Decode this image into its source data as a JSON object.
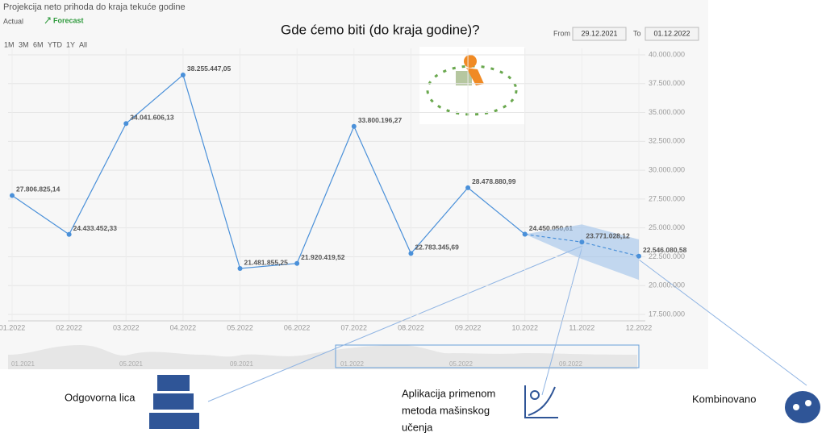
{
  "page": {
    "heading": "Gde ćemo biti (do kraja godine)?",
    "legend_actual": "Actual",
    "legend_forecast": "Forecast",
    "ranges": [
      "1M",
      "3M",
      "6M",
      "YTD",
      "1Y",
      "All"
    ],
    "from_label": "From",
    "from_value": "29.12.2021",
    "to_label": "To",
    "to_value": "01.12.2022",
    "navigator_labels": [
      "01.2021",
      "05.2021",
      "09.2021",
      "01.2022",
      "05.2022",
      "09.2022"
    ],
    "annotations": {
      "people": "Odgovorna lica",
      "ml": [
        "Aplikacija primenom",
        "metoda mašinskog",
        "učenja"
      ],
      "combined": "Kombinovano"
    }
  },
  "chart_data": {
    "type": "line",
    "title": "Projekcija neto prihoda do kraja tekuće godine",
    "categories": [
      "01.2022",
      "02.2022",
      "03.2022",
      "04.2022",
      "05.2022",
      "06.2022",
      "07.2022",
      "08.2022",
      "09.2022",
      "10.2022",
      "11.2022",
      "12.2022"
    ],
    "series": [
      {
        "name": "Actual",
        "color": "#4a90d9",
        "values": [
          27806825.14,
          24433452.33,
          34041606.13,
          38255447.05,
          21481855.25,
          21920419.52,
          33800196.27,
          22783345.69,
          28478880.99,
          24450050.61,
          null,
          null
        ],
        "value_labels": [
          "27.806.825,14",
          "24.433.452,33",
          "34.041.606,13",
          "38.255.447,05",
          "21.481.855,25",
          "21.920.419,52",
          "33.800.196,27",
          "22.783.345,69",
          "28.478.880,99",
          "24.450.050,61",
          null,
          null
        ]
      },
      {
        "name": "Forecast",
        "color": "#4a90d9",
        "dashed": true,
        "values": [
          null,
          null,
          null,
          null,
          null,
          null,
          null,
          null,
          null,
          24450050.61,
          23771028.12,
          22546080.58
        ],
        "value_labels": [
          null,
          null,
          null,
          null,
          null,
          null,
          null,
          null,
          null,
          null,
          "23.771.028,12",
          "22.546.080,58"
        ],
        "upper": [
          null,
          null,
          null,
          null,
          null,
          null,
          null,
          null,
          null,
          24450050.61,
          25300000,
          24000000
        ],
        "lower": [
          null,
          null,
          null,
          null,
          null,
          null,
          null,
          null,
          null,
          24450050.61,
          22300000,
          20500000
        ]
      }
    ],
    "ylim": [
      17500000,
      40000000
    ],
    "yticks": [
      {
        "value": 17500000,
        "label": "17.500.000"
      },
      {
        "value": 20000000,
        "label": "20.000.000"
      },
      {
        "value": 22500000,
        "label": "22.500.000"
      },
      {
        "value": 25000000,
        "label": "25.000.000"
      },
      {
        "value": 27500000,
        "label": "27.500.000"
      },
      {
        "value": 30000000,
        "label": "30.000.000"
      },
      {
        "value": 32500000,
        "label": "32.500.000"
      },
      {
        "value": 35000000,
        "label": "35.000.000"
      },
      {
        "value": 37500000,
        "label": "37.500.000"
      },
      {
        "value": 40000000,
        "label": "40.000.000"
      }
    ],
    "grid": true
  }
}
